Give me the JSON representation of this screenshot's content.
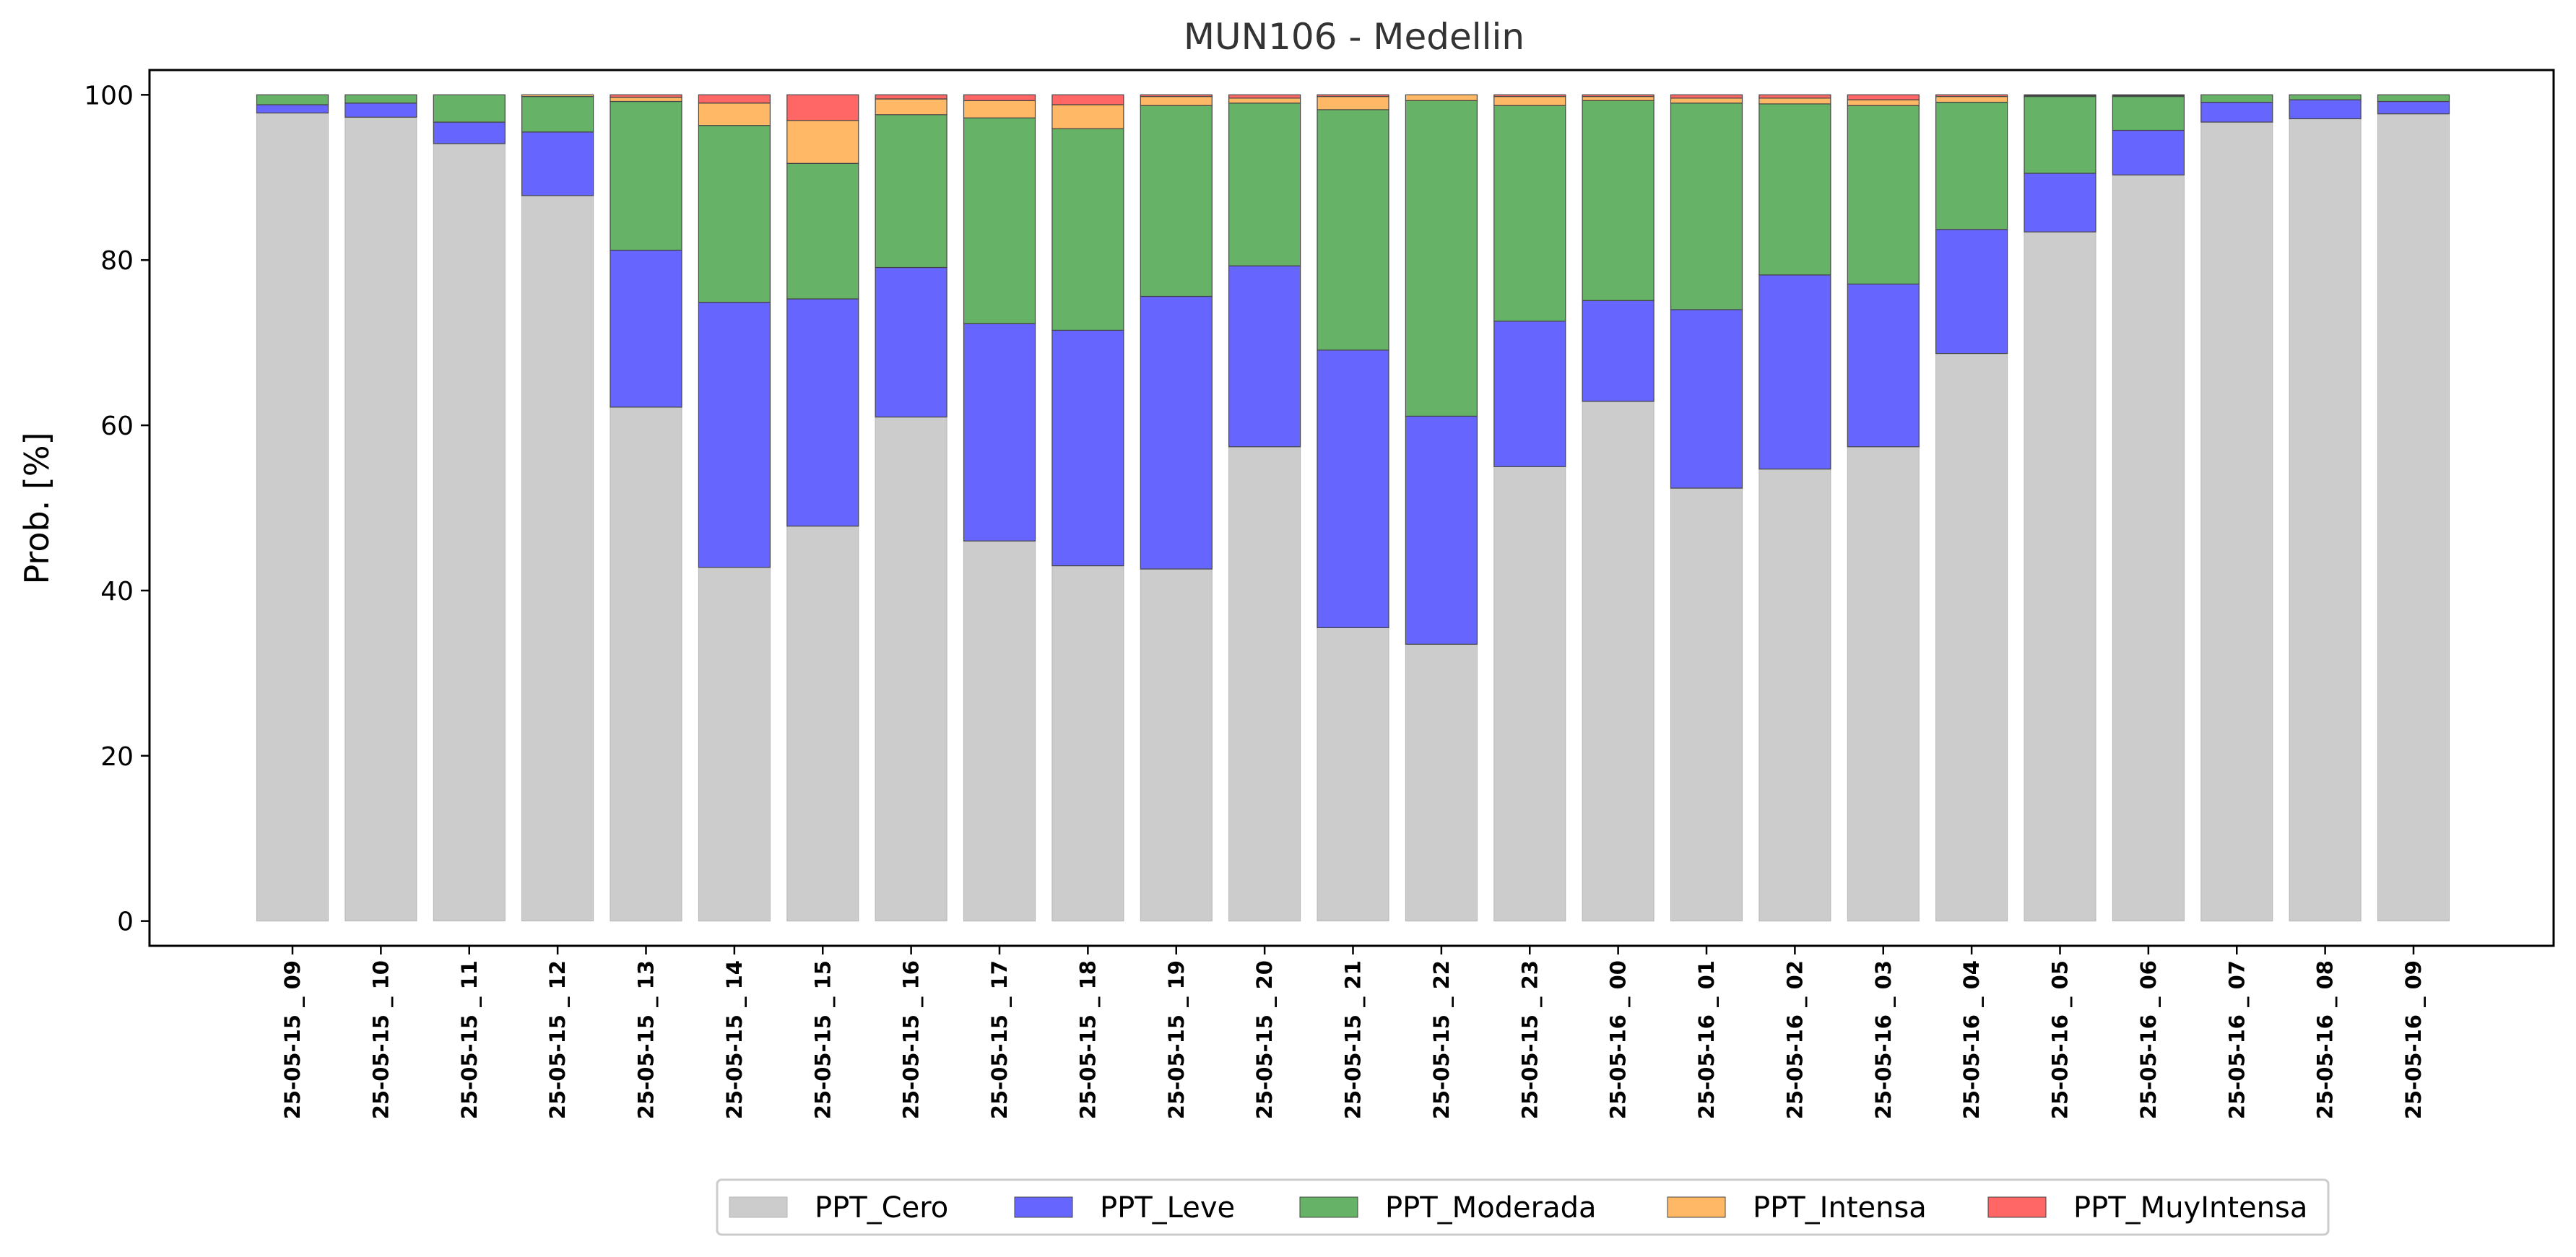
{
  "chart_data": {
    "type": "bar",
    "stacked": true,
    "title": "MUN106 - Medellin",
    "ylabel": "Prob. [%]",
    "xlabel": "",
    "ylim": [
      -3,
      103
    ],
    "yticks": [
      0,
      20,
      40,
      60,
      80,
      100
    ],
    "grid": false,
    "legend_position": "bottom-center",
    "categories": [
      "25-05-15 _ 09",
      "25-05-15 _ 10",
      "25-05-15 _ 11",
      "25-05-15 _ 12",
      "25-05-15 _ 13",
      "25-05-15 _ 14",
      "25-05-15 _ 15",
      "25-05-15 _ 16",
      "25-05-15 _ 17",
      "25-05-15 _ 18",
      "25-05-15 _ 19",
      "25-05-15 _ 20",
      "25-05-15 _ 21",
      "25-05-15 _ 22",
      "25-05-15 _ 23",
      "25-05-16 _ 00",
      "25-05-16 _ 01",
      "25-05-16 _ 02",
      "25-05-16 _ 03",
      "25-05-16 _ 04",
      "25-05-16 _ 05",
      "25-05-16 _ 06",
      "25-05-16 _ 07",
      "25-05-16 _ 08",
      "25-05-16 _ 09"
    ],
    "series": [
      {
        "name": "PPT_Cero",
        "color": "#cccccc",
        "values": [
          97.8,
          97.3,
          94.1,
          87.8,
          62.2,
          42.8,
          47.8,
          61.0,
          46.0,
          43.0,
          42.6,
          57.4,
          35.5,
          33.5,
          55.0,
          62.9,
          52.4,
          54.7,
          57.4,
          68.7,
          83.4,
          90.3,
          96.7,
          97.1,
          97.7
        ]
      },
      {
        "name": "PPT_Leve",
        "color": "#6666ff",
        "values": [
          1.0,
          1.7,
          2.6,
          7.7,
          19.0,
          32.1,
          27.5,
          18.1,
          26.3,
          28.5,
          33.0,
          21.9,
          33.6,
          27.6,
          17.6,
          12.2,
          21.6,
          23.5,
          19.7,
          15.0,
          7.1,
          5.4,
          2.4,
          2.3,
          1.5
        ]
      },
      {
        "name": "PPT_Moderada",
        "color": "#66b266",
        "values": [
          1.2,
          1.0,
          3.3,
          4.3,
          18.0,
          21.4,
          16.4,
          18.5,
          24.9,
          24.4,
          23.1,
          19.7,
          29.1,
          38.2,
          26.1,
          24.2,
          25.0,
          20.7,
          21.6,
          15.4,
          9.3,
          4.1,
          0.9,
          0.6,
          0.8
        ]
      },
      {
        "name": "PPT_Intensa",
        "color": "#ffb866",
        "values": [
          0.0,
          0.0,
          0.0,
          0.2,
          0.5,
          2.7,
          5.2,
          1.9,
          2.1,
          2.9,
          1.1,
          0.6,
          1.6,
          0.7,
          1.1,
          0.5,
          0.6,
          0.7,
          0.7,
          0.7,
          0.1,
          0.1,
          0.0,
          0.0,
          0.0
        ]
      },
      {
        "name": "PPT_MuyIntensa",
        "color": "#ff6666",
        "values": [
          0.0,
          0.0,
          0.0,
          0.0,
          0.3,
          1.0,
          3.1,
          0.5,
          0.7,
          1.2,
          0.2,
          0.4,
          0.2,
          0.0,
          0.2,
          0.2,
          0.4,
          0.4,
          0.6,
          0.2,
          0.1,
          0.1,
          0.0,
          0.0,
          0.0
        ]
      }
    ]
  }
}
